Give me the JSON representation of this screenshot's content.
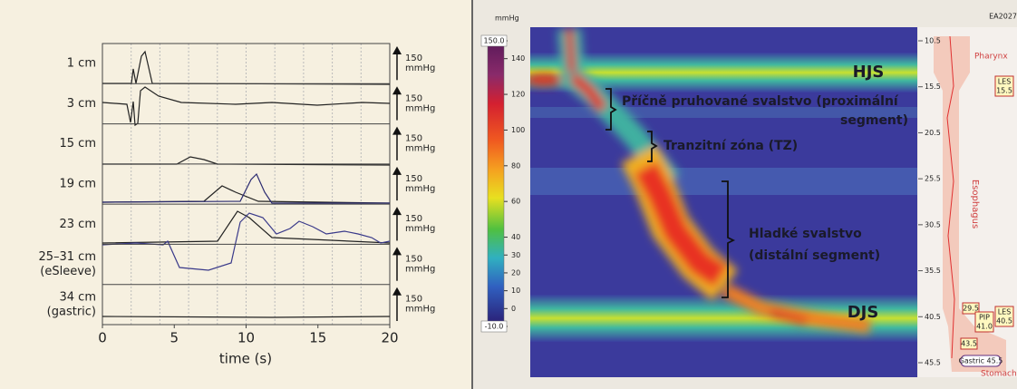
{
  "left_panel": {
    "channels": [
      {
        "label": [
          "1 cm"
        ],
        "scale": 150,
        "unit": "mmHg"
      },
      {
        "label": [
          "3 cm"
        ],
        "scale": 150,
        "unit": "mmHg"
      },
      {
        "label": [
          "15 cm"
        ],
        "scale": 150,
        "unit": "mmHg"
      },
      {
        "label": [
          "19 cm"
        ],
        "scale": 150,
        "unit": "mmHg"
      },
      {
        "label": [
          "23 cm"
        ],
        "scale": 150,
        "unit": "mmHg"
      },
      {
        "label": [
          "25–31 cm",
          "(eSleeve)"
        ],
        "scale": 150,
        "unit": "mmHg"
      },
      {
        "label": [
          "34 cm",
          "(gastric)"
        ],
        "scale": 150,
        "unit": "mmHg"
      }
    ],
    "x_axis": {
      "label": "time (s)",
      "range": [
        0,
        20
      ],
      "ticks": [
        0,
        5,
        10,
        15,
        20
      ]
    }
  },
  "right_panel": {
    "colorbar": {
      "unit": "mmHg",
      "range": [
        -10,
        150
      ],
      "ticks": [
        {
          "value": 150,
          "label": "150.0"
        },
        140,
        120,
        100,
        80,
        60,
        40,
        30,
        20,
        10,
        0,
        {
          "value": -10,
          "label": "-10.0"
        }
      ]
    },
    "annotations": {
      "upper": "HJS",
      "striated": [
        "Příčně pruhované svalstvo (proximální",
        "segment)"
      ],
      "transition": "Tranzitní zóna (TZ)",
      "smooth": [
        "Hladké svalstvo",
        "(distální segment)"
      ],
      "lower": "DJS"
    },
    "depth_scale": {
      "range": [
        10.5,
        45.5
      ],
      "ticks": [
        10.5,
        15.5,
        20.5,
        25.5,
        30.5,
        35.5,
        40.5,
        45.5
      ]
    },
    "diagram": {
      "id": "EA2027",
      "pharynx": "Pharynx",
      "esophagus": "Esophagus",
      "stomach": "Stomach",
      "ues": [
        "LES",
        "15.5"
      ],
      "les": [
        "LES",
        "40.5"
      ],
      "pip": [
        "PIP",
        "41.0"
      ],
      "marker1": "29.5",
      "marker2": "43.5",
      "gastric": "Gastric 45.5"
    }
  }
}
